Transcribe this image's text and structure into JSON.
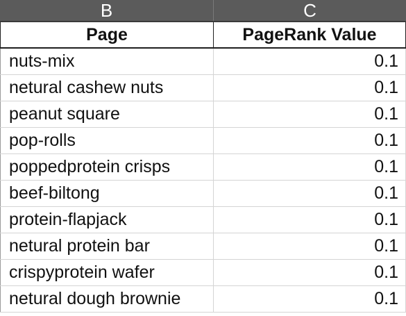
{
  "column_headers": [
    "B",
    "C"
  ],
  "table": {
    "headers": {
      "page": "Page",
      "pagerank": "PageRank Value"
    },
    "rows": [
      {
        "page": "nuts-mix",
        "value": "0.1"
      },
      {
        "page": "netural cashew nuts",
        "value": "0.1"
      },
      {
        "page": "peanut square",
        "value": "0.1"
      },
      {
        "page": "pop-rolls",
        "value": "0.1"
      },
      {
        "page": "poppedprotein crisps",
        "value": "0.1"
      },
      {
        "page": "beef-biltong",
        "value": "0.1"
      },
      {
        "page": "protein-flapjack",
        "value": "0.1"
      },
      {
        "page": "netural protein bar",
        "value": "0.1"
      },
      {
        "page": "crispyprotein wafer",
        "value": "0.1"
      },
      {
        "page": "netural dough brownie",
        "value": "0.1"
      }
    ]
  }
}
